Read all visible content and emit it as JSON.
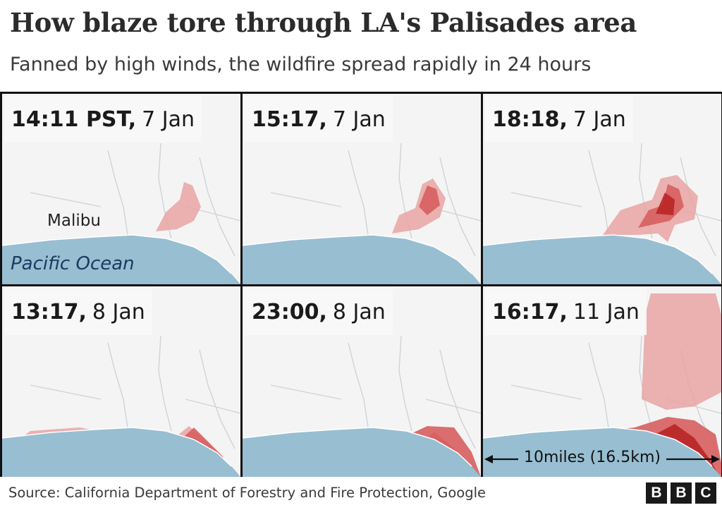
{
  "title": "How blaze tore through LA's Palisades area",
  "subtitle": "Fanned by high winds, the wildfire spread rapidly in 24 hours",
  "panels": [
    {
      "time": "14:11 PST,",
      "date": "7 Jan",
      "stage": 1
    },
    {
      "time": "15:17,",
      "date": "7 Jan",
      "stage": 2
    },
    {
      "time": "18:18,",
      "date": "7 Jan",
      "stage": 3
    },
    {
      "time": "13:17,",
      "date": "8 Jan",
      "stage": 4
    },
    {
      "time": "23:00,",
      "date": "8 Jan",
      "stage": 5
    },
    {
      "time": "16:17,",
      "date": "11 Jan",
      "stage": 6
    }
  ],
  "places": {
    "malibu": "Malibu",
    "ocean": "Pacific Ocean"
  },
  "scale": {
    "label": "10miles (16.5km)"
  },
  "source": "Source: California Department of Forestry and Fire Protection, Google",
  "logo": {
    "letters": [
      "B",
      "B",
      "C"
    ]
  },
  "colors": {
    "ocean": "#98bed2",
    "land": "#f4f4f4",
    "fire_light": "#e9a3a3",
    "fire_medium": "#d75f5f",
    "fire_dark": "#b92525"
  }
}
